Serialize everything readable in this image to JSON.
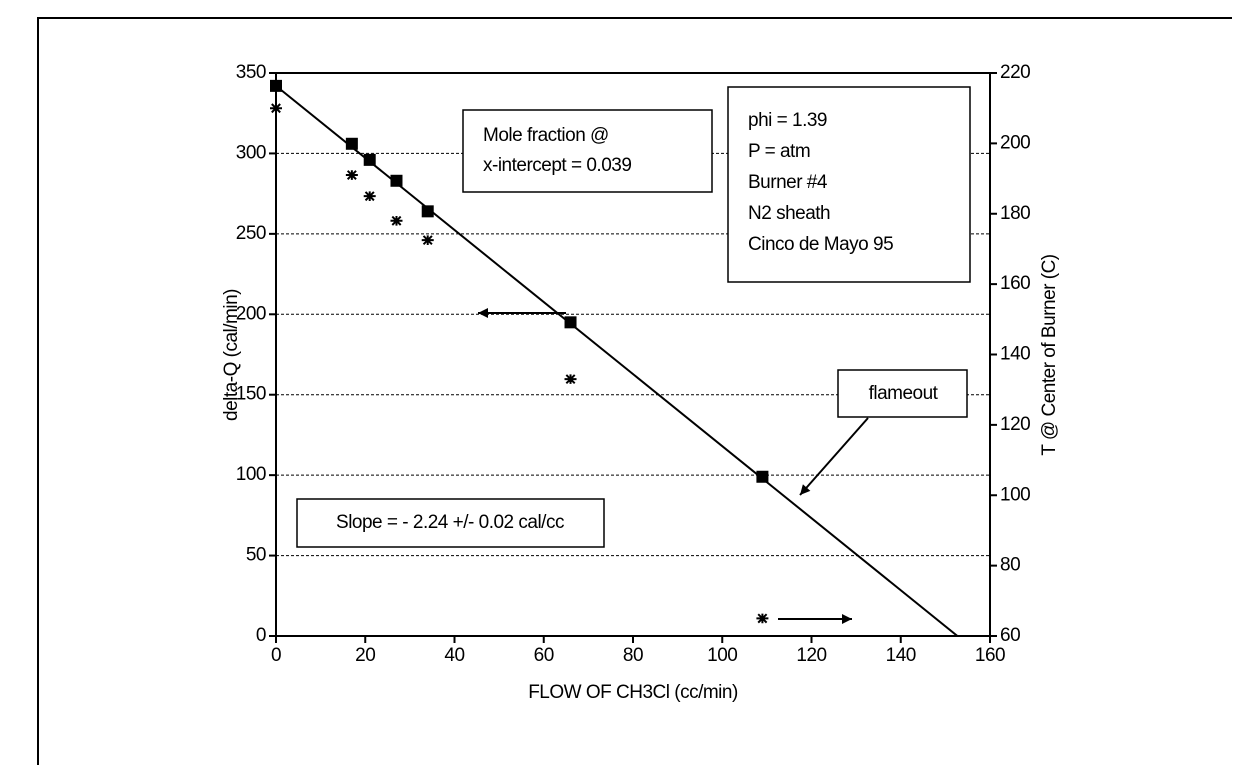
{
  "chart_data": {
    "type": "scatter",
    "xlabel": "FLOW OF CH3Cl (cc/min)",
    "ylabel": "delta-Q (cal/min)",
    "y2label": "T @ Center of Burner (C)",
    "xlim": [
      0,
      160
    ],
    "xticks": [
      0,
      20,
      40,
      60,
      80,
      100,
      120,
      140,
      160
    ],
    "ylim": [
      0,
      350
    ],
    "yticks": [
      0,
      50,
      100,
      150,
      200,
      250,
      300,
      350
    ],
    "y2lim": [
      60,
      220
    ],
    "y2ticks": [
      60,
      80,
      100,
      120,
      140,
      160,
      180,
      200,
      220
    ],
    "grid": true,
    "series": [
      {
        "marker": "square",
        "color": "#000000",
        "x": [
          0,
          17,
          21,
          27,
          34,
          66,
          109
        ],
        "values": [
          342,
          306,
          296,
          283,
          264,
          195,
          99
        ]
      },
      {
        "marker": "star",
        "color": "#000000",
        "axis": "y2",
        "x": [
          0,
          17,
          21,
          27,
          34,
          66,
          109
        ],
        "values": [
          210,
          191,
          185,
          178,
          172.5,
          133,
          65
        ]
      }
    ],
    "trend": {
      "x": [
        0,
        152.7
      ],
      "values": [
        342,
        0
      ]
    },
    "annotations": {
      "mole": [
        "Mole fraction @",
        "x-intercept = 0.039"
      ],
      "conditions": [
        "phi = 1.39",
        "P = atm",
        "Burner #4",
        "N2 sheath",
        "Cinco de Mayo 95"
      ],
      "flameout": "flameout",
      "slope": "Slope = - 2.24 +/- 0.02 cal/cc"
    }
  }
}
